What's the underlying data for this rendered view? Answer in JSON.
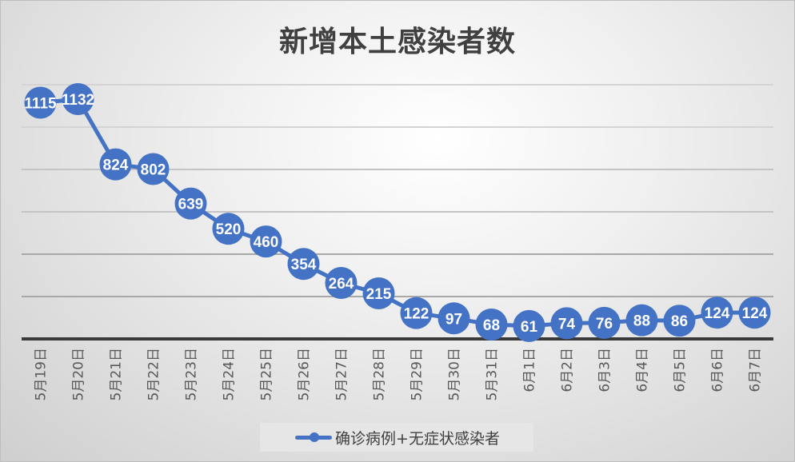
{
  "chart_data": {
    "type": "line",
    "title": "新增本土感染者数",
    "xlabel": "",
    "ylabel": "",
    "categories": [
      "5月19日",
      "5月20日",
      "5月21日",
      "5月22日",
      "5月23日",
      "5月24日",
      "5月25日",
      "5月26日",
      "5月27日",
      "5月28日",
      "5月29日",
      "5月30日",
      "5月31日",
      "6月1日",
      "6月2日",
      "6月3日",
      "6月4日",
      "6月5日",
      "6月6日",
      "6月7日"
    ],
    "series": [
      {
        "name": "确诊病例+无症状感染者",
        "color": "#4472c4",
        "values": [
          1115,
          1132,
          824,
          802,
          639,
          520,
          460,
          354,
          264,
          215,
          122,
          97,
          68,
          61,
          74,
          76,
          88,
          86,
          124,
          124
        ]
      }
    ],
    "ylim": [
      0,
      1200
    ],
    "y_gridlines": [
      200,
      400,
      600,
      800,
      1000,
      1200
    ],
    "y_tick_labels_visible": false,
    "grid": true,
    "data_labels": true,
    "legend_position": "bottom"
  },
  "legend": {
    "label": "确诊病例+无症状感染者"
  }
}
